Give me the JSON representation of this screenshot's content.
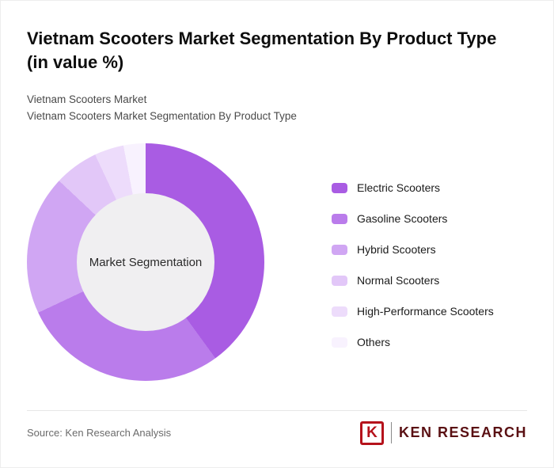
{
  "header": {
    "title": "Vietnam Scooters Market Segmentation By Product Type (in value %)",
    "subtitle1": "Vietnam Scooters Market",
    "subtitle2": "Vietnam Scooters Market Segmentation By Product Type"
  },
  "chart_data": {
    "type": "pie",
    "donut": true,
    "title": "Vietnam Scooters Market Segmentation By Product Type (in value %)",
    "center_label": "Market Segmentation",
    "categories": [
      "Electric Scooters",
      "Gasoline Scooters",
      "Hybrid Scooters",
      "Normal Scooters",
      "High-Performance Scooters",
      "Others"
    ],
    "values": [
      40,
      28,
      19,
      6,
      4,
      3
    ],
    "colors": [
      "#a95ce3",
      "#ba7ceb",
      "#d0a6f3",
      "#e2c7f8",
      "#eddcfb",
      "#f8f2fe"
    ],
    "legend_position": "right",
    "start_angle_deg": 0,
    "direction": "clockwise"
  },
  "footer": {
    "source": "Source: Ken Research Analysis",
    "logo_letter": "K",
    "logo_text": "KEN RESEARCH",
    "logo_color": "#b5121b"
  }
}
